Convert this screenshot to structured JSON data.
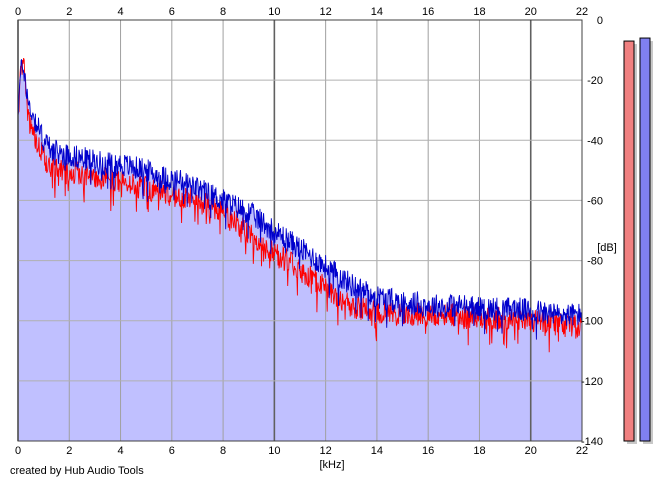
{
  "chart_data": {
    "type": "area",
    "title": "",
    "xlabel": "[kHz]",
    "ylabel": "[dB]",
    "x_ticks": [
      "0",
      "2",
      "4",
      "6",
      "8",
      "10",
      "12",
      "14",
      "16",
      "18",
      "20",
      "22"
    ],
    "y_ticks": [
      "0",
      "-20",
      "-40",
      "-60",
      "-80",
      "-100",
      "-120",
      "-140"
    ],
    "xlim": [
      0,
      22
    ],
    "ylim": [
      -140,
      0
    ],
    "grid": true,
    "x_tick_positions": "top-and-bottom",
    "y_tick_positions": "right",
    "series": [
      {
        "key": "blue",
        "color": "#0000cc",
        "fill": "#c0c0ff",
        "x": [
          0.0,
          0.1,
          0.2,
          0.3,
          0.4,
          0.5,
          0.6,
          0.7,
          0.8,
          1.0,
          1.2,
          1.5,
          2.0,
          2.5,
          3.0,
          3.5,
          4.0,
          4.5,
          5.0,
          5.5,
          6.0,
          6.5,
          7.0,
          7.5,
          8.0,
          8.5,
          9.0,
          9.5,
          10.0,
          10.5,
          11.0,
          11.5,
          12.0,
          12.5,
          13.0,
          13.5,
          14.0,
          14.5,
          15.0,
          15.5,
          16.0,
          16.5,
          17.0,
          17.5,
          18.0,
          18.5,
          19.0,
          19.5,
          20.0,
          20.5,
          21.0,
          21.5,
          22.0
        ],
        "y": [
          -30,
          -18,
          -14,
          -20,
          -28,
          -30,
          -32,
          -34,
          -36,
          -40,
          -42,
          -44,
          -45,
          -46,
          -47,
          -48,
          -48,
          -49,
          -50,
          -52,
          -53,
          -54,
          -56,
          -58,
          -60,
          -62,
          -64,
          -67,
          -70,
          -73,
          -76,
          -79,
          -82,
          -85,
          -88,
          -90,
          -92,
          -93,
          -94,
          -94,
          -95,
          -95,
          -95,
          -95,
          -96,
          -96,
          -96,
          -96,
          -97,
          -97,
          -98,
          -98,
          -98
        ]
      },
      {
        "key": "red",
        "color": "#ff0000",
        "x": [
          0.0,
          0.1,
          0.2,
          0.3,
          0.4,
          0.5,
          0.6,
          0.7,
          0.8,
          1.0,
          1.2,
          1.5,
          2.0,
          2.5,
          3.0,
          3.5,
          4.0,
          4.5,
          5.0,
          5.5,
          6.0,
          6.5,
          7.0,
          7.5,
          8.0,
          8.5,
          9.0,
          9.5,
          10.0,
          10.5,
          11.0,
          11.5,
          12.0,
          12.5,
          13.0,
          13.5,
          14.0,
          14.5,
          15.0,
          15.5,
          16.0,
          16.5,
          17.0,
          17.5,
          18.0,
          18.5,
          19.0,
          19.5,
          20.0,
          20.5,
          21.0,
          21.5,
          22.0
        ],
        "y": [
          -32,
          -16,
          -13,
          -22,
          -32,
          -36,
          -38,
          -40,
          -42,
          -46,
          -48,
          -49,
          -50,
          -51,
          -52,
          -53,
          -54,
          -55,
          -56,
          -57,
          -58,
          -59,
          -60,
          -62,
          -64,
          -67,
          -71,
          -75,
          -78,
          -80,
          -83,
          -86,
          -89,
          -92,
          -95,
          -96,
          -97,
          -97,
          -98,
          -98,
          -98,
          -98,
          -98,
          -99,
          -99,
          -99,
          -99,
          -99,
          -100,
          -100,
          -101,
          -102,
          -102
        ]
      }
    ],
    "meters": [
      {
        "key": "left",
        "color": "#f08080",
        "level_db": -7
      },
      {
        "key": "right",
        "color": "#8080f0",
        "level_db": -6
      }
    ]
  },
  "footer": {
    "credit": "created by Hub Audio Tools"
  }
}
